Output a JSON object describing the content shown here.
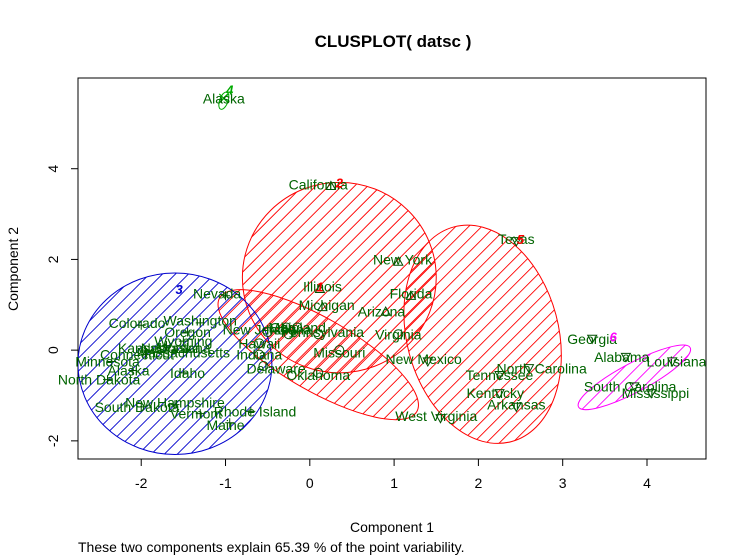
{
  "chart_data": {
    "type": "scatter",
    "title": "CLUSPLOT( datsc )",
    "xlabel": "Component 1",
    "ylabel": "Component 2",
    "subtitle": "These two components explain 65.39 % of the point variability.",
    "xlim": [
      -2.75,
      4.7
    ],
    "ylim": [
      -2.4,
      6.0
    ],
    "xticks": [
      -2,
      -1,
      0,
      1,
      2,
      3,
      4
    ],
    "yticks": [
      -2,
      0,
      2,
      4
    ],
    "colors": {
      "label": "#006400",
      "red": "#ff0000",
      "blue": "#0000cd",
      "green": "#00aa00",
      "magenta": "#ff00ff",
      "axis": "#000000"
    },
    "clusters": [
      {
        "id": "1",
        "color": "#ff0000",
        "center": [
          0.1,
          -0.1
        ],
        "rx": 1.35,
        "ry": 0.8,
        "angle": 30,
        "hatch": "red"
      },
      {
        "id": "2",
        "color": "#ff0000",
        "center": [
          0.35,
          1.6
        ],
        "rx": 1.15,
        "ry": 2.1,
        "angle": 0,
        "hatch": "red"
      },
      {
        "id": "3",
        "color": "#0000cd",
        "center": [
          -1.6,
          -0.3
        ],
        "rx": 1.15,
        "ry": 2.0,
        "angle": 0,
        "hatch": "blue"
      },
      {
        "id": "4",
        "color": "#00aa00",
        "center": [
          -1.02,
          5.5
        ],
        "rx": 0.05,
        "ry": 0.2,
        "angle": 20,
        "hatch": "green"
      },
      {
        "id": "5",
        "color": "#ff0000",
        "center": [
          2.05,
          0.35
        ],
        "rx": 0.9,
        "ry": 2.45,
        "angle": -15,
        "hatch": "red"
      },
      {
        "id": "6",
        "color": "#ff00ff",
        "center": [
          3.85,
          -0.6
        ],
        "rx": 0.75,
        "ry": 0.32,
        "angle": -28,
        "hatch": "magenta"
      }
    ],
    "cluster_labels": [
      {
        "text": "1",
        "x": 0.12,
        "y": 1.4,
        "color": "#ff0000"
      },
      {
        "text": "2",
        "x": 0.35,
        "y": 3.7,
        "color": "#ff0000"
      },
      {
        "text": "3",
        "x": -1.55,
        "y": 1.35,
        "color": "#0000cd"
      },
      {
        "text": "4",
        "x": -0.95,
        "y": 5.75,
        "color": "#00aa00"
      },
      {
        "text": "5",
        "x": 2.5,
        "y": 2.45,
        "color": "#ff0000"
      },
      {
        "text": "6",
        "x": 3.6,
        "y": 0.3,
        "color": "#ff00ff"
      }
    ],
    "points": [
      {
        "label": "Alaska",
        "x": -1.02,
        "y": 5.55,
        "sym": "x"
      },
      {
        "label": "California",
        "x": 0.25,
        "y": 3.62,
        "sym": "tri"
      },
      {
        "label": "Texas",
        "x": 2.45,
        "y": 2.4,
        "sym": "del"
      },
      {
        "label": "New York",
        "x": 1.05,
        "y": 1.95,
        "sym": "tri"
      },
      {
        "label": "Illinois",
        "x": 0.12,
        "y": 1.35,
        "sym": "tri"
      },
      {
        "label": "Nevada",
        "x": -1.0,
        "y": 1.2,
        "sym": "cross"
      },
      {
        "label": "Florida",
        "x": 1.2,
        "y": 1.2,
        "sym": "tri"
      },
      {
        "label": "Michigan",
        "x": 0.15,
        "y": 0.95,
        "sym": "tri"
      },
      {
        "label": "Washington",
        "x": -1.3,
        "y": 0.6,
        "sym": "cross"
      },
      {
        "label": "Arizona",
        "x": 0.9,
        "y": 0.85,
        "sym": "tri"
      },
      {
        "label": "Colorado",
        "x": -2.0,
        "y": 0.55,
        "sym": "cross"
      },
      {
        "label": "Maryland",
        "x": -0.15,
        "y": 0.5,
        "sym": "circ"
      },
      {
        "label": "Ohio",
        "x": -0.28,
        "y": 0.5,
        "sym": "circ"
      },
      {
        "label": "Indiana",
        "x": -0.25,
        "y": 0.35,
        "sym": "circ"
      },
      {
        "label": "Pennsylvania",
        "x": 0.1,
        "y": 0.35,
        "sym": "circ"
      },
      {
        "label": "New Jersey",
        "x": -0.5,
        "y": 0.4,
        "sym": "circ"
      },
      {
        "label": "Oregon",
        "x": -1.45,
        "y": 0.4,
        "sym": "cross"
      },
      {
        "label": "Virginia",
        "x": 1.05,
        "y": 0.35,
        "sym": "circ"
      },
      {
        "label": "Wyoming",
        "x": -1.5,
        "y": 0.2,
        "sym": "cross"
      },
      {
        "label": "Missouri",
        "x": 0.35,
        "y": 0.0,
        "sym": "circ"
      },
      {
        "label": "Kansas",
        "x": -1.95,
        "y": 0.0,
        "sym": "cross"
      },
      {
        "label": "Hawaii",
        "x": -0.6,
        "y": 0.15,
        "sym": "circ"
      },
      {
        "label": "Montana",
        "x": -1.6,
        "y": 0.0,
        "sym": "cross"
      },
      {
        "label": "Nebraska",
        "x": -1.7,
        "y": 0.1,
        "sym": "cross"
      },
      {
        "label": "Massachusetts",
        "x": -1.5,
        "y": -0.05,
        "sym": "cross"
      },
      {
        "label": "Oklahoma",
        "x": 0.1,
        "y": -0.5,
        "sym": "circ"
      },
      {
        "label": "Connecticut",
        "x": -1.95,
        "y": -0.1,
        "sym": "cross"
      },
      {
        "label": "Indiana",
        "x": -0.6,
        "y": -0.1,
        "sym": "circ"
      },
      {
        "label": "Delaware",
        "x": -0.55,
        "y": -0.35,
        "sym": "circ"
      },
      {
        "label": "New Mexico",
        "x": 1.4,
        "y": -0.25,
        "sym": "del"
      },
      {
        "label": "Minnesota",
        "x": -2.35,
        "y": -0.25,
        "sym": "cross"
      },
      {
        "label": "Alaska",
        "x": -2.1,
        "y": -0.45,
        "sym": "cross"
      },
      {
        "label": "Idaho",
        "x": -1.5,
        "y": -0.5,
        "sym": "cross"
      },
      {
        "label": "North Dakota",
        "x": -2.4,
        "y": -0.65,
        "sym": "cross"
      },
      {
        "label": "North Carolina",
        "x": 2.6,
        "y": -0.4,
        "sym": "del"
      },
      {
        "label": "Tennessee",
        "x": 2.25,
        "y": -0.55,
        "sym": "del"
      },
      {
        "label": "Georgia",
        "x": 3.35,
        "y": 0.25,
        "sym": "del"
      },
      {
        "label": "Alabama",
        "x": 3.75,
        "y": -0.15,
        "sym": "del"
      },
      {
        "label": "Louisiana",
        "x": 4.3,
        "y": -0.25,
        "sym": "del"
      },
      {
        "label": "Kentucky",
        "x": 2.25,
        "y": -0.95,
        "sym": "del"
      },
      {
        "label": "South Carolina",
        "x": 3.85,
        "y": -0.8,
        "sym": "del"
      },
      {
        "label": "Mississippi",
        "x": 4.05,
        "y": -0.95,
        "sym": "del"
      },
      {
        "label": "Arkansas",
        "x": 2.45,
        "y": -1.25,
        "sym": "del"
      },
      {
        "label": "New Hampshire",
        "x": -1.6,
        "y": -1.2,
        "sym": "cross"
      },
      {
        "label": "South Dakota",
        "x": -2.0,
        "y": -1.25,
        "sym": "cross"
      },
      {
        "label": "Vermont",
        "x": -1.3,
        "y": -1.4,
        "sym": "cross"
      },
      {
        "label": "Rhode Island",
        "x": -0.7,
        "y": -1.35,
        "sym": "cross"
      },
      {
        "label": "Maine",
        "x": -0.95,
        "y": -1.6,
        "sym": "cross"
      },
      {
        "label": "West Virginia",
        "x": 1.55,
        "y": -1.5,
        "sym": "del"
      }
    ],
    "text_labels": [
      {
        "text": "Alaska",
        "x": -1.02,
        "y": 5.55
      },
      {
        "text": "California",
        "x": 0.1,
        "y": 3.65
      },
      {
        "text": "Texas",
        "x": 2.45,
        "y": 2.45
      },
      {
        "text": "New York",
        "x": 1.1,
        "y": 2.0
      },
      {
        "text": "Illinois",
        "x": 0.15,
        "y": 1.4
      },
      {
        "text": "Nevada",
        "x": -1.1,
        "y": 1.25
      },
      {
        "text": "Florida",
        "x": 1.2,
        "y": 1.25
      },
      {
        "text": "Michigan",
        "x": 0.2,
        "y": 1.0
      },
      {
        "text": "Washington",
        "x": -1.3,
        "y": 0.65
      },
      {
        "text": "Arizona",
        "x": 0.85,
        "y": 0.85
      },
      {
        "text": "Colorado",
        "x": -2.05,
        "y": 0.6
      },
      {
        "text": "Oregon",
        "x": -1.45,
        "y": 0.4
      },
      {
        "text": "Maryland",
        "x": -0.15,
        "y": 0.5
      },
      {
        "text": "Ohio",
        "x": -0.3,
        "y": 0.5
      },
      {
        "text": "Indiana",
        "x": -0.25,
        "y": 0.45
      },
      {
        "text": "New Jersey",
        "x": -0.6,
        "y": 0.45
      },
      {
        "text": "Pennsylvania",
        "x": 0.15,
        "y": 0.4
      },
      {
        "text": "Virginia",
        "x": 1.05,
        "y": 0.35
      },
      {
        "text": "Wyoming",
        "x": -1.5,
        "y": 0.2
      },
      {
        "text": "Montana",
        "x": -1.5,
        "y": 0.05
      },
      {
        "text": "Missouri",
        "x": 0.35,
        "y": -0.05
      },
      {
        "text": "Kansas",
        "x": -2.0,
        "y": 0.05
      },
      {
        "text": "Hawaii",
        "x": -0.6,
        "y": 0.15
      },
      {
        "text": "Nebraska",
        "x": -1.65,
        "y": 0.05
      },
      {
        "text": "Massachusetts",
        "x": -1.5,
        "y": -0.05
      },
      {
        "text": "Indiana",
        "x": -0.6,
        "y": -0.1
      },
      {
        "text": "Connecticut",
        "x": -2.05,
        "y": -0.1
      },
      {
        "text": "Delaware",
        "x": -0.4,
        "y": -0.4
      },
      {
        "text": "Oklahoma",
        "x": 0.1,
        "y": -0.55
      },
      {
        "text": "New Mexico",
        "x": 1.35,
        "y": -0.2
      },
      {
        "text": "Minnesota",
        "x": -2.4,
        "y": -0.25
      },
      {
        "text": "Alaska",
        "x": -2.15,
        "y": -0.45
      },
      {
        "text": "Idaho",
        "x": -1.45,
        "y": -0.5
      },
      {
        "text": "North Dakota",
        "x": -2.5,
        "y": -0.65
      },
      {
        "text": "North Carolina",
        "x": 2.75,
        "y": -0.4
      },
      {
        "text": "Tennessee",
        "x": 2.25,
        "y": -0.55
      },
      {
        "text": "Georgia",
        "x": 3.35,
        "y": 0.25
      },
      {
        "text": "Alabama",
        "x": 3.7,
        "y": -0.15
      },
      {
        "text": "Louisiana",
        "x": 4.35,
        "y": -0.25
      },
      {
        "text": "Kentucky",
        "x": 2.2,
        "y": -0.95
      },
      {
        "text": "South Carolina",
        "x": 3.8,
        "y": -0.8
      },
      {
        "text": "Mississippi",
        "x": 4.1,
        "y": -0.95
      },
      {
        "text": "Arkansas",
        "x": 2.45,
        "y": -1.2
      },
      {
        "text": "New Hampshire",
        "x": -1.6,
        "y": -1.15
      },
      {
        "text": "South Dakota",
        "x": -2.05,
        "y": -1.25
      },
      {
        "text": "Vermont",
        "x": -1.35,
        "y": -1.4
      },
      {
        "text": "Rhode Island",
        "x": -0.65,
        "y": -1.35
      },
      {
        "text": "Maine",
        "x": -1.0,
        "y": -1.65
      },
      {
        "text": "West Virginia",
        "x": 1.5,
        "y": -1.45
      }
    ],
    "grid": false,
    "legend": "none"
  }
}
